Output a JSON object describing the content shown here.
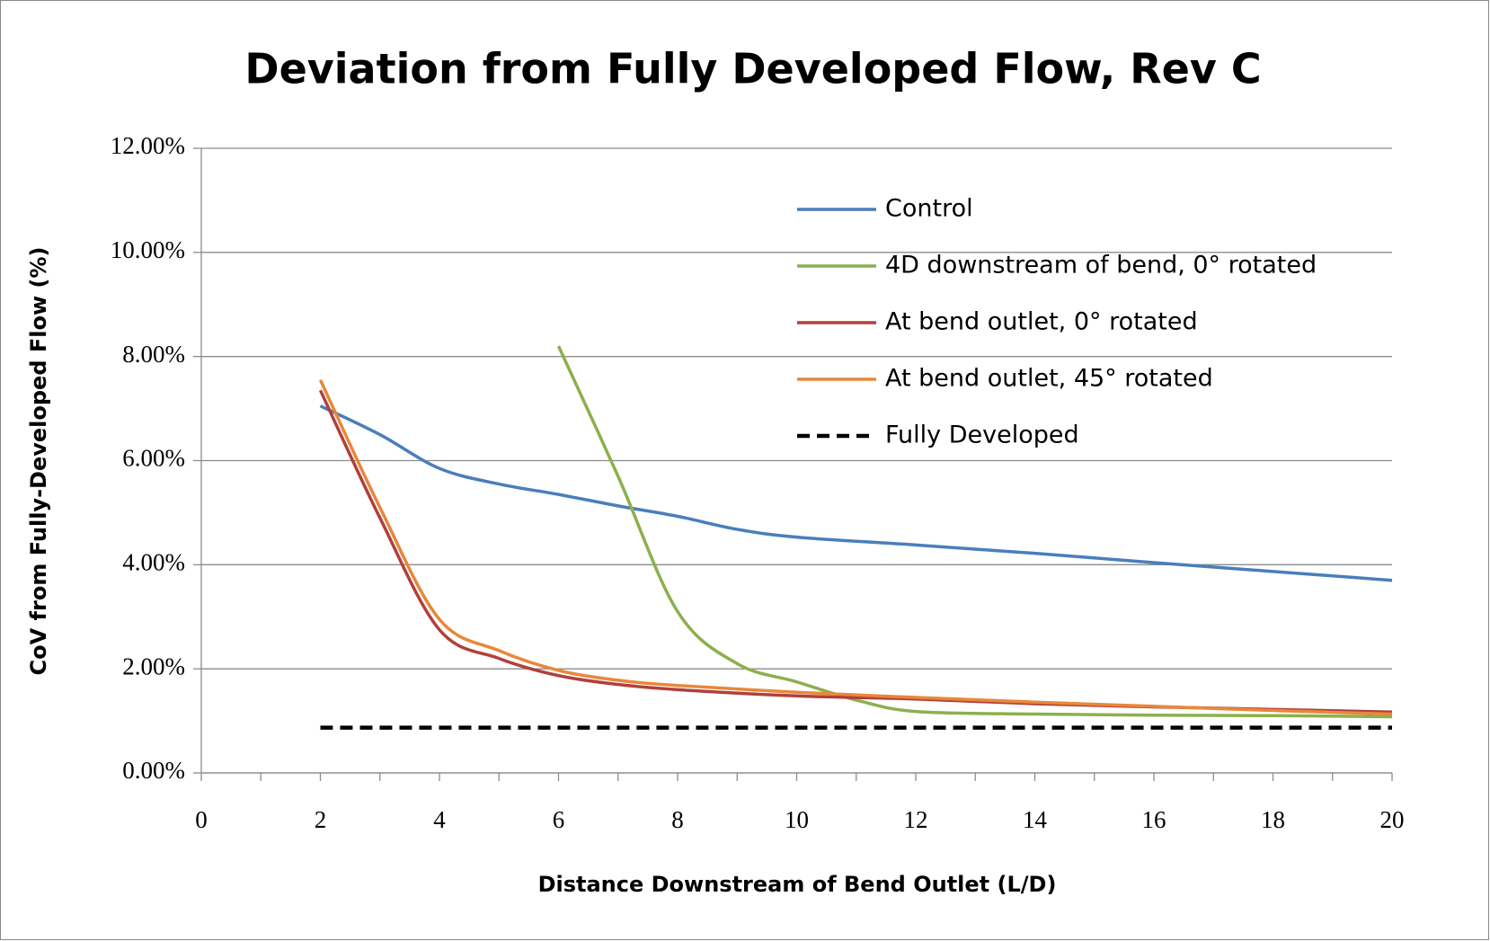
{
  "chart_data": {
    "type": "line",
    "title": "Deviation from Fully Developed Flow, Rev C",
    "x_label": "Distance Downstream of Bend Outlet (L/D)",
    "y_label": "CoV from Fully-Developed Flow (%)",
    "xlim": [
      0,
      20
    ],
    "xticks": [
      0,
      2,
      4,
      6,
      8,
      10,
      12,
      14,
      16,
      18,
      20
    ],
    "ylim": [
      0,
      12
    ],
    "yticks": [
      {
        "value": 0,
        "label": "0.00%"
      },
      {
        "value": 2,
        "label": "2.00%"
      },
      {
        "value": 4,
        "label": "4.00%"
      },
      {
        "value": 6,
        "label": "6.00%"
      },
      {
        "value": 8,
        "label": "8.00%"
      },
      {
        "value": 10,
        "label": "10.00%"
      },
      {
        "value": 12,
        "label": "12.00%"
      }
    ],
    "grid": true,
    "legend": "upper right",
    "series": [
      {
        "name": "Control",
        "color": "#4a7ebb",
        "dash": false,
        "x": [
          2,
          3,
          4,
          5,
          6,
          7,
          8,
          9,
          10,
          12,
          14,
          16,
          18,
          20
        ],
        "values": [
          7.05,
          6.5,
          5.85,
          5.55,
          5.35,
          5.13,
          4.93,
          4.68,
          4.53,
          4.38,
          4.22,
          4.04,
          3.87,
          3.7
        ]
      },
      {
        "name": "4D downstream of bend, 0° rotated",
        "color": "#8cb04d",
        "dash": false,
        "x": [
          6,
          7,
          8,
          9,
          10,
          11,
          12,
          14,
          16,
          18,
          20
        ],
        "values": [
          8.2,
          5.7,
          3.1,
          2.1,
          1.75,
          1.4,
          1.18,
          1.13,
          1.11,
          1.1,
          1.08
        ]
      },
      {
        "name": "At bend outlet, 0° rotated",
        "color": "#b0403c",
        "dash": false,
        "x": [
          2,
          3,
          4,
          5,
          6,
          7,
          8,
          10,
          12,
          14,
          16,
          18,
          20
        ],
        "values": [
          7.35,
          4.9,
          2.75,
          2.2,
          1.87,
          1.7,
          1.6,
          1.48,
          1.42,
          1.33,
          1.27,
          1.22,
          1.17
        ]
      },
      {
        "name": "At bend outlet, 45° rotated",
        "color": "#e8883a",
        "dash": false,
        "x": [
          2,
          3,
          4,
          5,
          6,
          7,
          8,
          10,
          12,
          14,
          16,
          18,
          20
        ],
        "values": [
          7.55,
          5.1,
          2.95,
          2.35,
          1.97,
          1.78,
          1.68,
          1.55,
          1.45,
          1.36,
          1.28,
          1.2,
          1.13
        ]
      },
      {
        "name": "Fully Developed",
        "color": "#000000",
        "dash": true,
        "x": [
          2,
          20
        ],
        "values": [
          0.87,
          0.87
        ]
      }
    ]
  }
}
